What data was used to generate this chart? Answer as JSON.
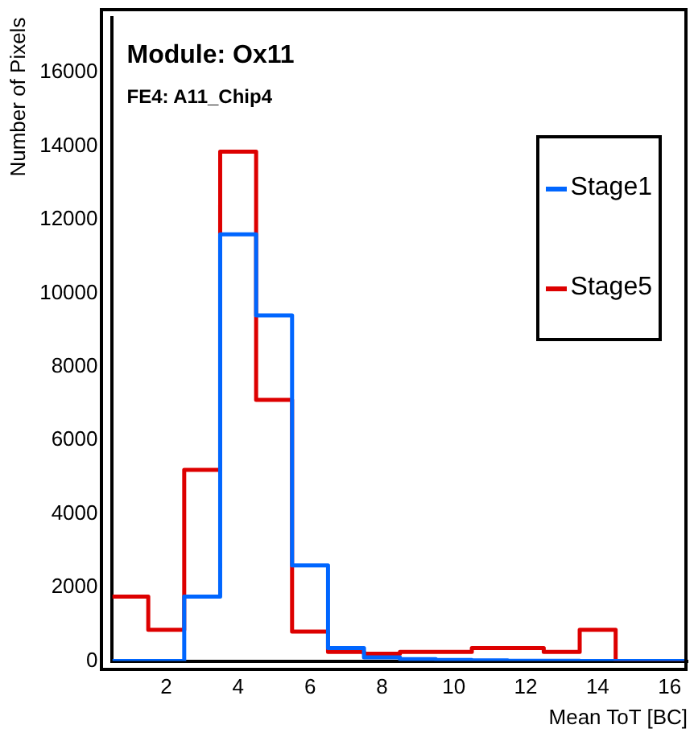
{
  "chart_data": {
    "type": "histogram",
    "title": "Module: Ox11",
    "subtitle": "FE4: A11_Chip4",
    "xlabel": "Mean ToT [BC]",
    "ylabel": "Number of Pixels",
    "bins": [
      0.5,
      1.5,
      2.5,
      3.5,
      4.5,
      5.5,
      6.5,
      7.5,
      8.5,
      9.5,
      10.5,
      11.5,
      12.5,
      13.5,
      14.5,
      15.5,
      16.5
    ],
    "series": [
      {
        "name": "Stage1",
        "color": "#0066ff",
        "values": [
          0,
          0,
          1750,
          11600,
          9400,
          2600,
          350,
          100,
          50,
          30,
          20,
          10,
          10,
          0,
          0,
          0
        ]
      },
      {
        "name": "Stage5",
        "color": "#dd0000",
        "values": [
          1750,
          850,
          5200,
          13850,
          7100,
          800,
          250,
          200,
          250,
          250,
          350,
          350,
          250,
          850,
          0,
          0
        ]
      }
    ],
    "xlim": [
      0.5,
      16.5
    ],
    "xticks": [
      2,
      4,
      6,
      8,
      10,
      12,
      14,
      16
    ],
    "ylim": [
      0,
      17500
    ],
    "yticks": [
      0,
      2000,
      4000,
      6000,
      8000,
      10000,
      12000,
      14000,
      16000
    ],
    "grid": false,
    "legend": "top right"
  }
}
